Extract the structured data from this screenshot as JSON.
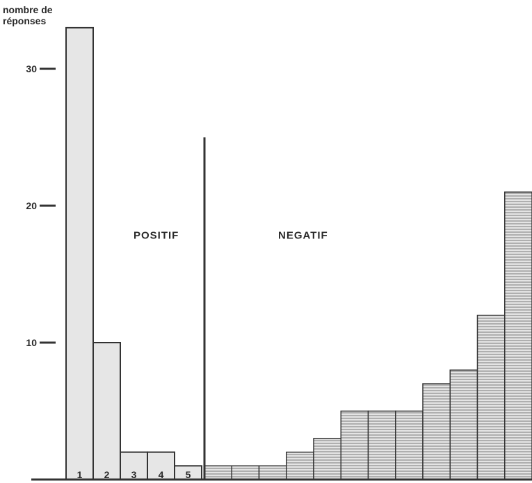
{
  "chart_data": {
    "type": "bar",
    "ylabel_lines": [
      "nombre de",
      "réponses"
    ],
    "y_ticks": [
      10,
      20,
      30
    ],
    "ylim": [
      0,
      33
    ],
    "regions": {
      "positive": "POSITIF",
      "negative": "NEGATIF"
    },
    "divider_height": 25,
    "positive_bars": [
      {
        "label": "1",
        "value": 33
      },
      {
        "label": "2",
        "value": 10
      },
      {
        "label": "3",
        "value": 2
      },
      {
        "label": "4",
        "value": 2
      },
      {
        "label": "5",
        "value": 1
      }
    ],
    "negative_bars": [
      1,
      1,
      1,
      2,
      3,
      5,
      5,
      5,
      7,
      8,
      12,
      21
    ],
    "colors": {
      "positive_fill": "#e6e6e6",
      "negative_fill": "#dcdcdc",
      "line": "#333333",
      "hatch": "#7a7a7a"
    }
  }
}
